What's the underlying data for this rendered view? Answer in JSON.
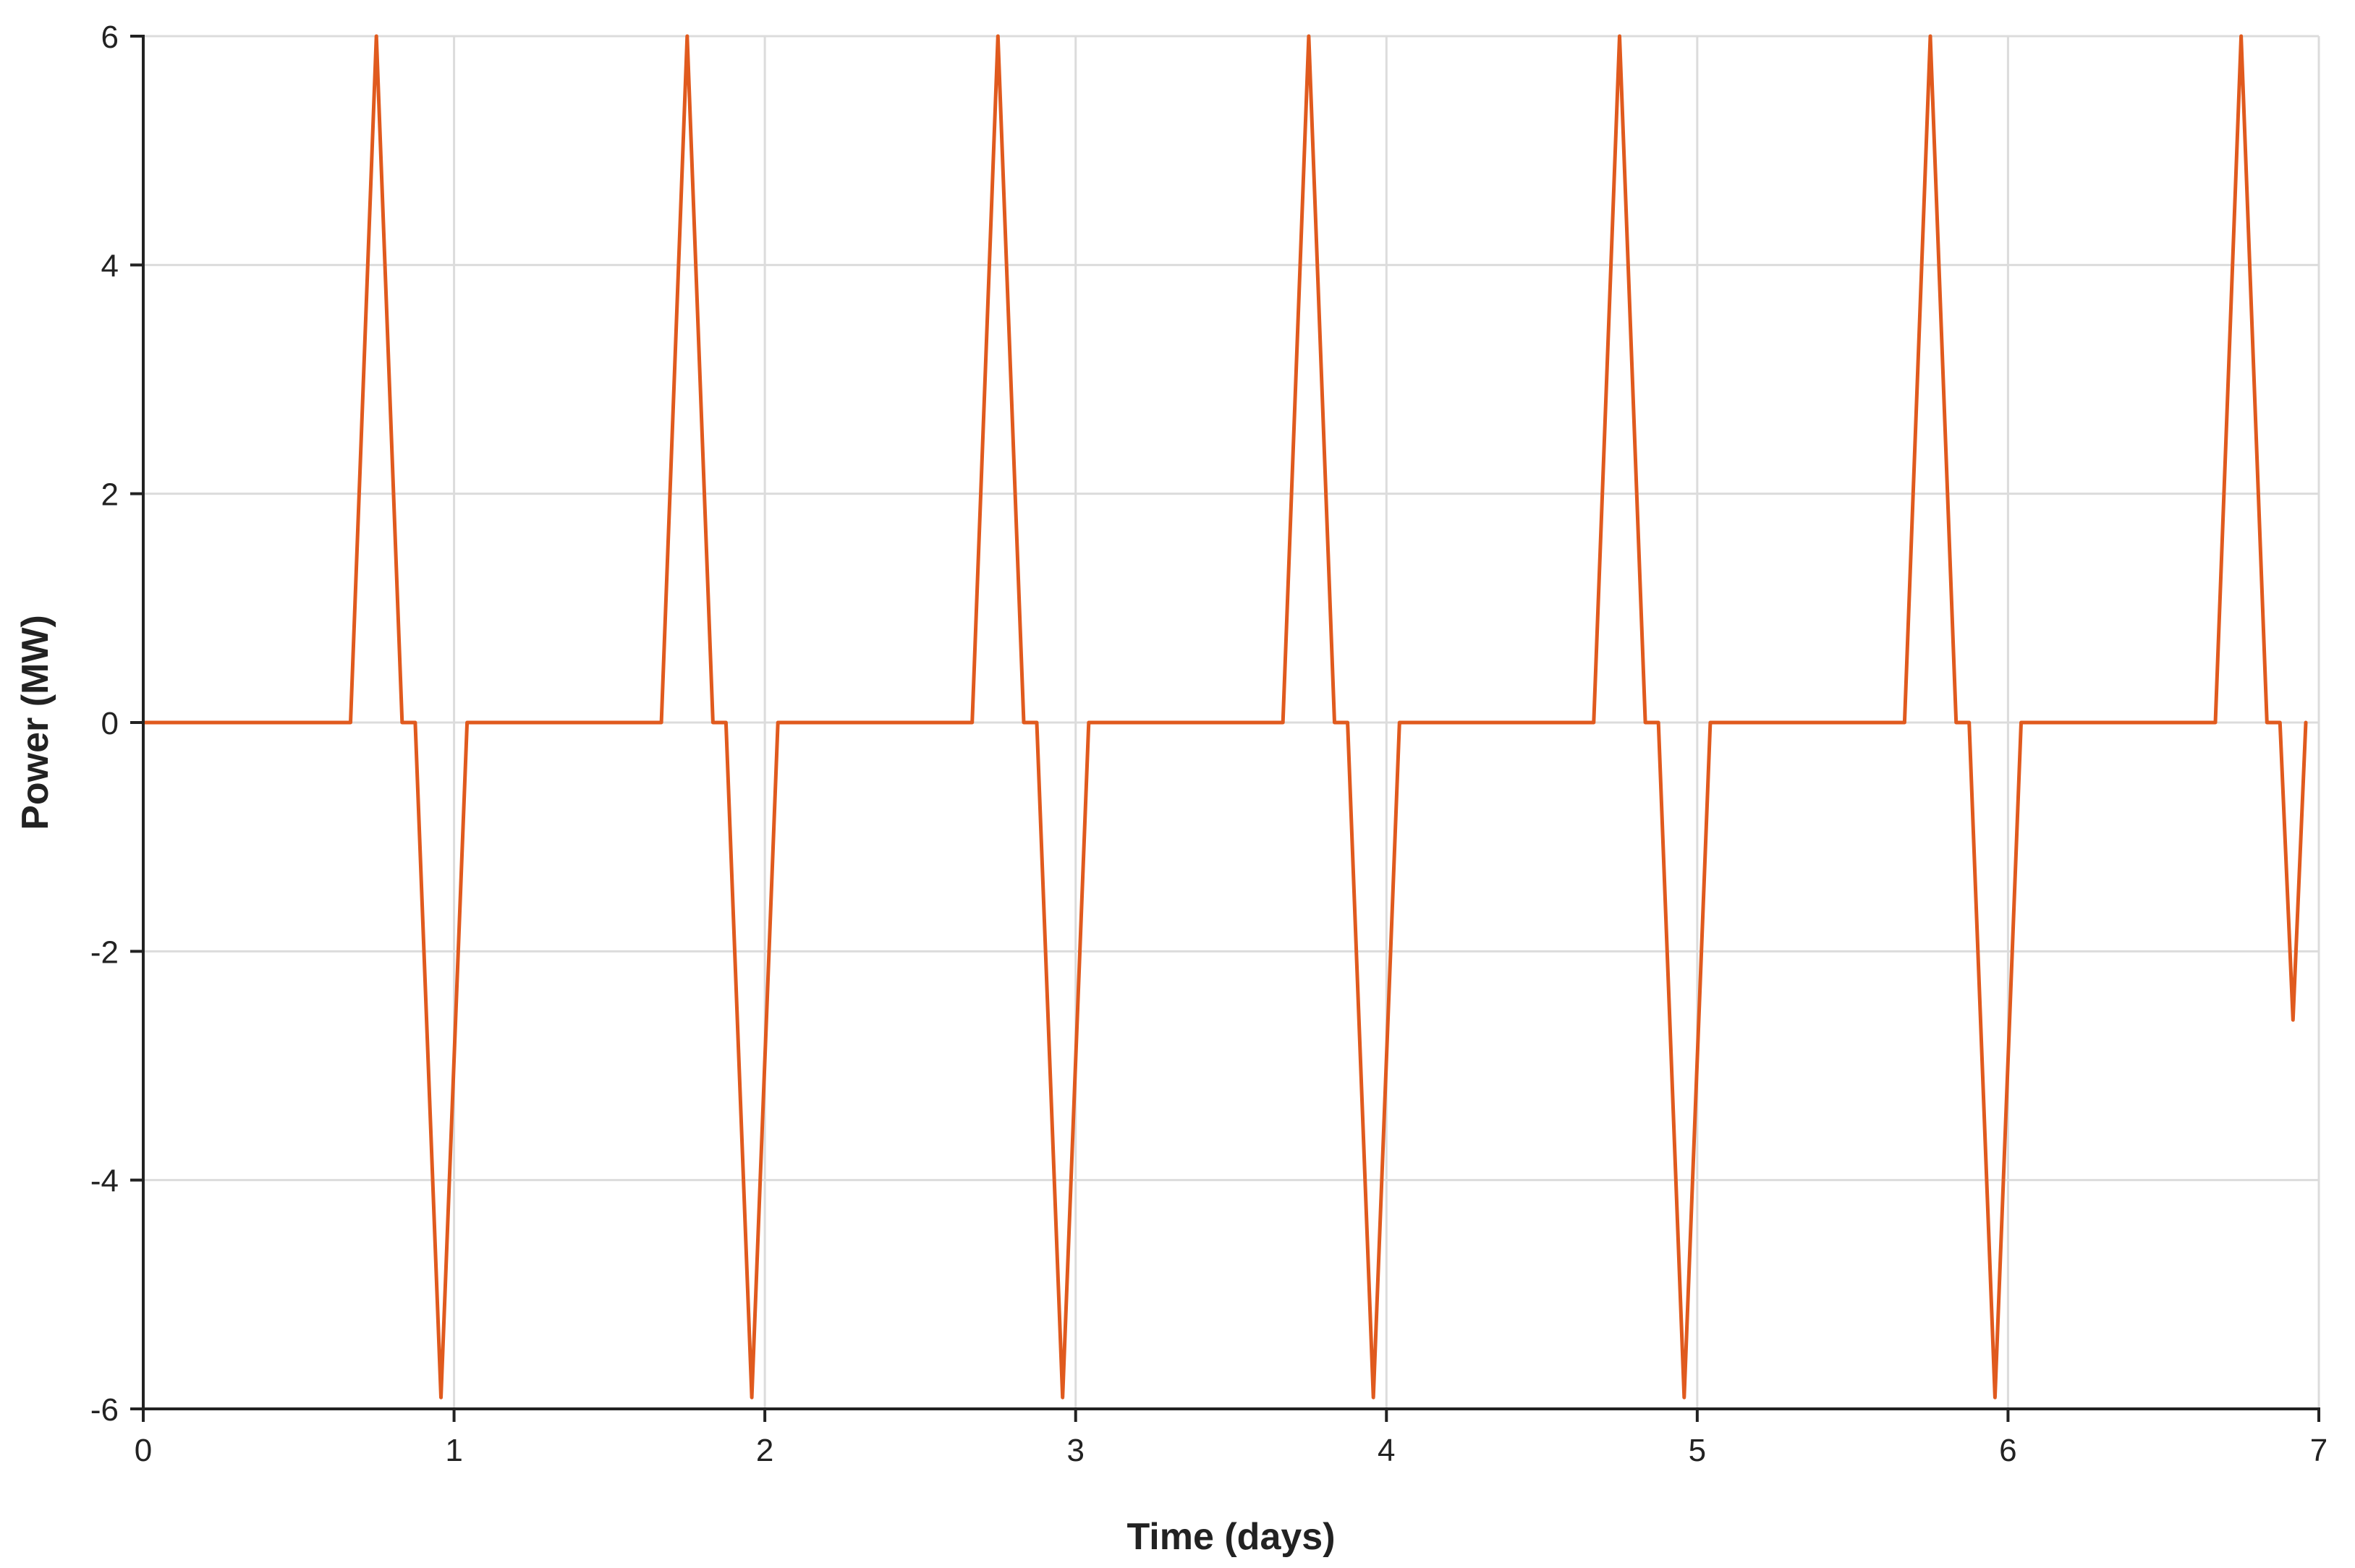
{
  "chart_data": {
    "type": "line",
    "title": "",
    "xlabel": "Time (days)",
    "ylabel": "Power (MW)",
    "xlim": [
      0,
      7
    ],
    "ylim": [
      -6,
      6
    ],
    "xticks": [
      "0",
      "1",
      "2",
      "3",
      "4",
      "5",
      "6",
      "7"
    ],
    "yticks": [
      "-6",
      "-4",
      "-2",
      "0",
      "2",
      "4",
      "6"
    ],
    "grid": true,
    "legend": "none",
    "series_color": "#e05a1e",
    "series": [
      {
        "x": [
          0,
          0.667,
          0.75,
          0.833,
          0.875,
          0.958,
          1.042,
          1.667,
          1.75,
          1.833,
          1.875,
          1.958,
          2.042,
          2.667,
          2.75,
          2.833,
          2.875,
          2.958,
          3.042,
          3.667,
          3.75,
          3.833,
          3.875,
          3.958,
          4.042,
          4.667,
          4.75,
          4.833,
          4.875,
          4.958,
          5.042,
          5.667,
          5.75,
          5.833,
          5.875,
          5.958,
          6.042,
          6.667,
          6.75,
          6.833,
          6.875,
          6.917,
          6.958
        ],
        "values": [
          0,
          0,
          6,
          0,
          0,
          -5.9,
          0,
          0,
          6,
          0,
          0,
          -5.9,
          0,
          0,
          6,
          0,
          0,
          -5.9,
          0,
          0,
          6,
          0,
          0,
          -5.9,
          0,
          0,
          6,
          0,
          0,
          -5.9,
          0,
          0,
          6,
          0,
          0,
          -5.9,
          0,
          0,
          6,
          0,
          0,
          -2.6,
          0
        ]
      }
    ]
  }
}
